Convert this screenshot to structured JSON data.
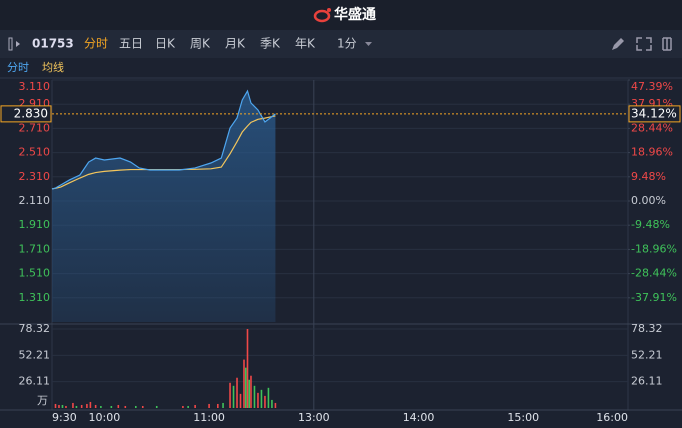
{
  "header": {
    "title": "华盛通"
  },
  "toolbar": {
    "code": "01753",
    "tabs": [
      "分时",
      "五日",
      "日K",
      "周K",
      "月K",
      "季K",
      "年K"
    ],
    "active": "分时",
    "interval": "1分"
  },
  "chart_data": [
    {
      "type": "line",
      "x": [
        0,
        2,
        5,
        10,
        16,
        21,
        25,
        30,
        39,
        45,
        50,
        56,
        73,
        82,
        91,
        97,
        102,
        106,
        109,
        112,
        114,
        118,
        122,
        125,
        128
      ],
      "series": [
        {
          "name": "分时",
          "color": "#4ea6f0",
          "values": [
            2.21,
            2.217,
            2.242,
            2.284,
            2.325,
            2.432,
            2.465,
            2.449,
            2.465,
            2.432,
            2.383,
            2.366,
            2.366,
            2.383,
            2.424,
            2.465,
            2.713,
            2.796,
            2.945,
            3.019,
            2.92,
            2.862,
            2.763,
            2.796,
            2.83
          ]
        },
        {
          "name": "均线",
          "color": "#f2c55c",
          "values": [
            2.21,
            2.215,
            2.225,
            2.26,
            2.3,
            2.33,
            2.345,
            2.355,
            2.365,
            2.37,
            2.37,
            2.37,
            2.37,
            2.372,
            2.376,
            2.39,
            2.5,
            2.6,
            2.68,
            2.73,
            2.76,
            2.785,
            2.795,
            2.805,
            2.813
          ]
        }
      ],
      "xlim": [
        0,
        330
      ],
      "ylim": [
        1.11,
        3.11
      ],
      "yticks": [
        {
          "value": 3.11,
          "label": "3.110"
        },
        {
          "value": 2.91,
          "label": "2.910"
        },
        {
          "value": 2.71,
          "label": "2.710"
        },
        {
          "value": 2.51,
          "label": "2.510"
        },
        {
          "value": 2.31,
          "label": "2.310"
        },
        {
          "value": 2.11,
          "label": "2.110"
        },
        {
          "value": 1.91,
          "label": "1.910"
        },
        {
          "value": 1.71,
          "label": "1.710"
        },
        {
          "value": 1.51,
          "label": "1.510"
        },
        {
          "value": 1.31,
          "label": "1.310"
        }
      ],
      "y2lim": [
        -47.39,
        47.39
      ],
      "y2ticks": [
        {
          "value": 47.39,
          "label": "47.39%"
        },
        {
          "value": 37.91,
          "label": "37.91%"
        },
        {
          "value": 28.44,
          "label": "28.44%"
        },
        {
          "value": 18.96,
          "label": "18.96%"
        },
        {
          "value": 9.48,
          "label": "9.48%"
        },
        {
          "value": 0,
          "label": "0.00%"
        },
        {
          "value": -9.48,
          "label": "-9.48%"
        },
        {
          "value": -18.96,
          "label": "-18.96%"
        },
        {
          "value": -28.44,
          "label": "-28.44%"
        },
        {
          "value": -37.91,
          "label": "-37.91%"
        }
      ],
      "current": {
        "value": 2.83,
        "label": "2.830"
      },
      "current_change": {
        "value": 34.12,
        "label": "34.12%"
      },
      "up_color": "#f04848",
      "down_color": "#3fc25a",
      "fill_color": "#2a5a8c"
    },
    {
      "type": "bar",
      "series": [
        {
          "color": "#f04848",
          "x": [
            2,
            4,
            8,
            12,
            17,
            20,
            22,
            25,
            38,
            42,
            52,
            75,
            82,
            90,
            95,
            102,
            106,
            108,
            110,
            112,
            114,
            118,
            122,
            128
          ],
          "values": [
            4,
            3,
            2,
            5,
            3,
            4,
            6,
            3,
            3,
            2,
            2,
            2,
            3,
            4,
            4,
            25,
            30,
            14,
            48,
            78.32,
            32,
            15,
            12,
            5
          ]
        },
        {
          "color": "#3fc25a",
          "x": [
            6,
            14,
            28,
            34,
            48,
            60,
            78,
            98,
            104,
            111,
            113,
            116,
            120,
            124,
            126
          ],
          "values": [
            3,
            2,
            2,
            2,
            2,
            2,
            2,
            5,
            22,
            40,
            28,
            22,
            18,
            20,
            8
          ]
        }
      ],
      "xlim": [
        0,
        330
      ],
      "xticks": [
        {
          "value": 0,
          "label": "9:30"
        },
        {
          "value": 30,
          "label": "10:00"
        },
        {
          "value": 90,
          "label": "11:00"
        },
        {
          "value": 150,
          "label": "13:00"
        },
        {
          "value": 210,
          "label": "14:00"
        },
        {
          "value": 270,
          "label": "15:00"
        },
        {
          "value": 330,
          "label": "16:00"
        }
      ],
      "ylim": [
        0,
        78.32
      ],
      "yticks": [
        78.32,
        52.21,
        26.11
      ],
      "unit": "万"
    }
  ]
}
